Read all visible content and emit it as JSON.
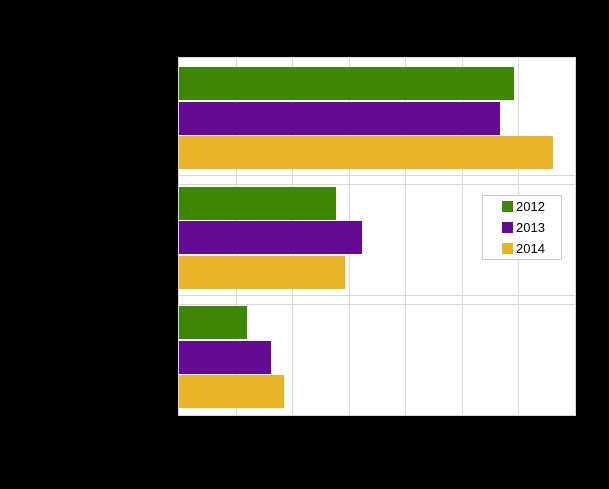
{
  "chart": {
    "canvas_background": "#000000",
    "plot_background": "#ffffff",
    "gridline_color": "#d9d9d9",
    "legend_border_color": "#cccccc"
  },
  "chart_data": {
    "type": "bar",
    "orientation": "horizontal",
    "title": "",
    "categories": [
      "",
      "",
      ""
    ],
    "series": [
      {
        "name": "2012",
        "color": "#3e8705",
        "values": [
          5.93,
          2.78,
          1.21
        ]
      },
      {
        "name": "2013",
        "color": "#650a94",
        "values": [
          5.68,
          3.24,
          1.62
        ]
      },
      {
        "name": "2014",
        "color": "#eab32a",
        "values": [
          6.61,
          2.94,
          1.86
        ]
      }
    ],
    "xlim": [
      0,
      7
    ],
    "grid": true,
    "tick_labels_visible": false,
    "legend_position": "center-right",
    "legend_entries": [
      "2012",
      "2013",
      "2014"
    ]
  }
}
